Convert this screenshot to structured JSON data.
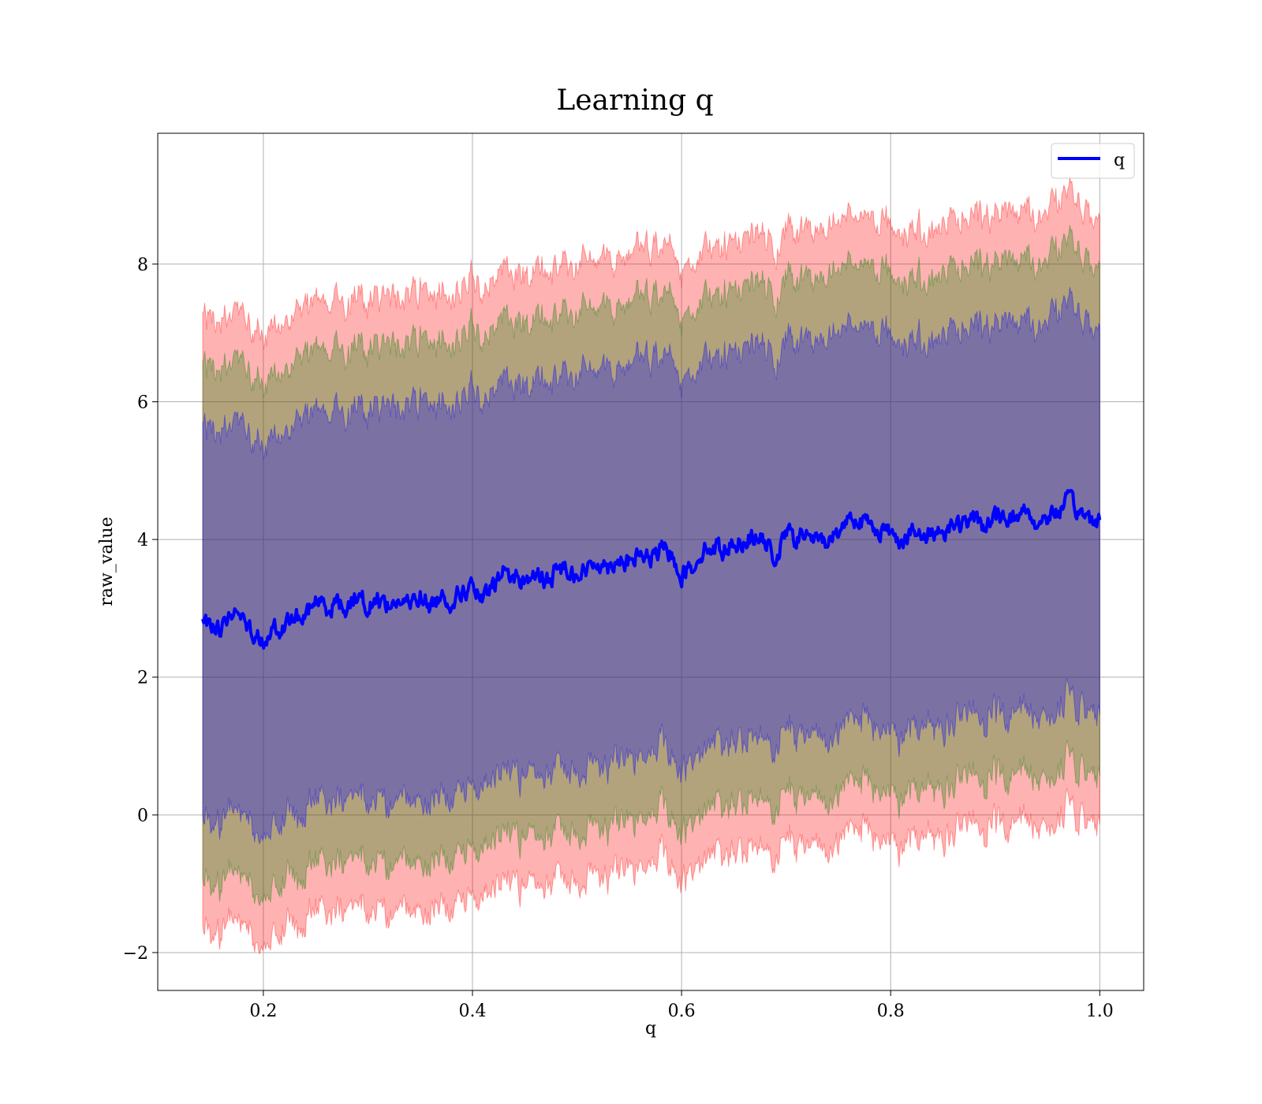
{
  "chart_data": {
    "type": "line",
    "title": "Learning q",
    "xlabel": "q",
    "ylabel": "raw_value",
    "xlim": [
      0.099,
      1.042
    ],
    "ylim": [
      -2.55,
      9.9
    ],
    "x_ticks": [
      0.2,
      0.4,
      0.6,
      0.8,
      1.0
    ],
    "x_tick_labels": [
      "0.2",
      "0.4",
      "0.6",
      "0.8",
      "1.0"
    ],
    "y_ticks": [
      -2,
      0,
      2,
      4,
      6,
      8
    ],
    "y_tick_labels": [
      "−2",
      "0",
      "2",
      "4",
      "6",
      "8"
    ],
    "grid": true,
    "legend": {
      "position": "top-right",
      "entries": [
        "q"
      ]
    },
    "x_range": [
      0.142,
      1.0
    ],
    "mean_line": {
      "name": "q",
      "color": "#0000ff",
      "points": [
        [
          0.142,
          2.82
        ],
        [
          0.15,
          2.75
        ],
        [
          0.16,
          2.72
        ],
        [
          0.17,
          2.95
        ],
        [
          0.18,
          2.88
        ],
        [
          0.19,
          2.65
        ],
        [
          0.2,
          2.55
        ],
        [
          0.21,
          2.75
        ],
        [
          0.22,
          2.68
        ],
        [
          0.23,
          2.9
        ],
        [
          0.24,
          2.85
        ],
        [
          0.25,
          3.15
        ],
        [
          0.26,
          3.0
        ],
        [
          0.27,
          3.1
        ],
        [
          0.28,
          3.0
        ],
        [
          0.29,
          3.25
        ],
        [
          0.3,
          3.0
        ],
        [
          0.31,
          3.15
        ],
        [
          0.32,
          3.05
        ],
        [
          0.33,
          3.1
        ],
        [
          0.34,
          3.05
        ],
        [
          0.35,
          3.2
        ],
        [
          0.36,
          3.0
        ],
        [
          0.37,
          3.2
        ],
        [
          0.38,
          3.1
        ],
        [
          0.39,
          3.25
        ],
        [
          0.4,
          3.3
        ],
        [
          0.41,
          3.1
        ],
        [
          0.42,
          3.3
        ],
        [
          0.43,
          3.55
        ],
        [
          0.44,
          3.45
        ],
        [
          0.45,
          3.4
        ],
        [
          0.46,
          3.5
        ],
        [
          0.47,
          3.35
        ],
        [
          0.48,
          3.55
        ],
        [
          0.49,
          3.6
        ],
        [
          0.5,
          3.5
        ],
        [
          0.51,
          3.55
        ],
        [
          0.52,
          3.7
        ],
        [
          0.53,
          3.6
        ],
        [
          0.54,
          3.75
        ],
        [
          0.55,
          3.65
        ],
        [
          0.56,
          3.8
        ],
        [
          0.57,
          3.7
        ],
        [
          0.58,
          3.85
        ],
        [
          0.59,
          3.8
        ],
        [
          0.6,
          3.5
        ],
        [
          0.61,
          3.6
        ],
        [
          0.62,
          3.85
        ],
        [
          0.63,
          3.9
        ],
        [
          0.64,
          3.85
        ],
        [
          0.65,
          3.95
        ],
        [
          0.66,
          4.0
        ],
        [
          0.67,
          4.05
        ],
        [
          0.68,
          3.95
        ],
        [
          0.69,
          3.7
        ],
        [
          0.7,
          4.1
        ],
        [
          0.71,
          4.0
        ],
        [
          0.72,
          4.1
        ],
        [
          0.73,
          3.95
        ],
        [
          0.74,
          4.0
        ],
        [
          0.75,
          4.1
        ],
        [
          0.76,
          4.35
        ],
        [
          0.77,
          4.3
        ],
        [
          0.78,
          4.2
        ],
        [
          0.79,
          4.15
        ],
        [
          0.8,
          4.1
        ],
        [
          0.81,
          4.0
        ],
        [
          0.82,
          4.1
        ],
        [
          0.83,
          4.0
        ],
        [
          0.84,
          4.15
        ],
        [
          0.85,
          4.1
        ],
        [
          0.86,
          4.25
        ],
        [
          0.87,
          4.2
        ],
        [
          0.88,
          4.3
        ],
        [
          0.89,
          4.2
        ],
        [
          0.9,
          4.3
        ],
        [
          0.91,
          4.35
        ],
        [
          0.92,
          4.3
        ],
        [
          0.93,
          4.45
        ],
        [
          0.94,
          4.2
        ],
        [
          0.95,
          4.35
        ],
        [
          0.96,
          4.4
        ],
        [
          0.97,
          4.55
        ],
        [
          0.98,
          4.4
        ],
        [
          0.99,
          4.3
        ],
        [
          1.0,
          4.3
        ]
      ]
    },
    "bands": [
      {
        "name": "band-outer",
        "lower_offset": -4.45,
        "upper_offset": 4.45,
        "color": "#ff0000",
        "opacity": 0.3
      },
      {
        "name": "band-middle",
        "lower_offset": -3.75,
        "upper_offset": 3.75,
        "color": "#008000",
        "opacity": 0.3
      },
      {
        "name": "band-inner",
        "lower_offset": -2.85,
        "upper_offset": 2.85,
        "color": "#0000ff",
        "opacity": 0.3
      }
    ]
  }
}
